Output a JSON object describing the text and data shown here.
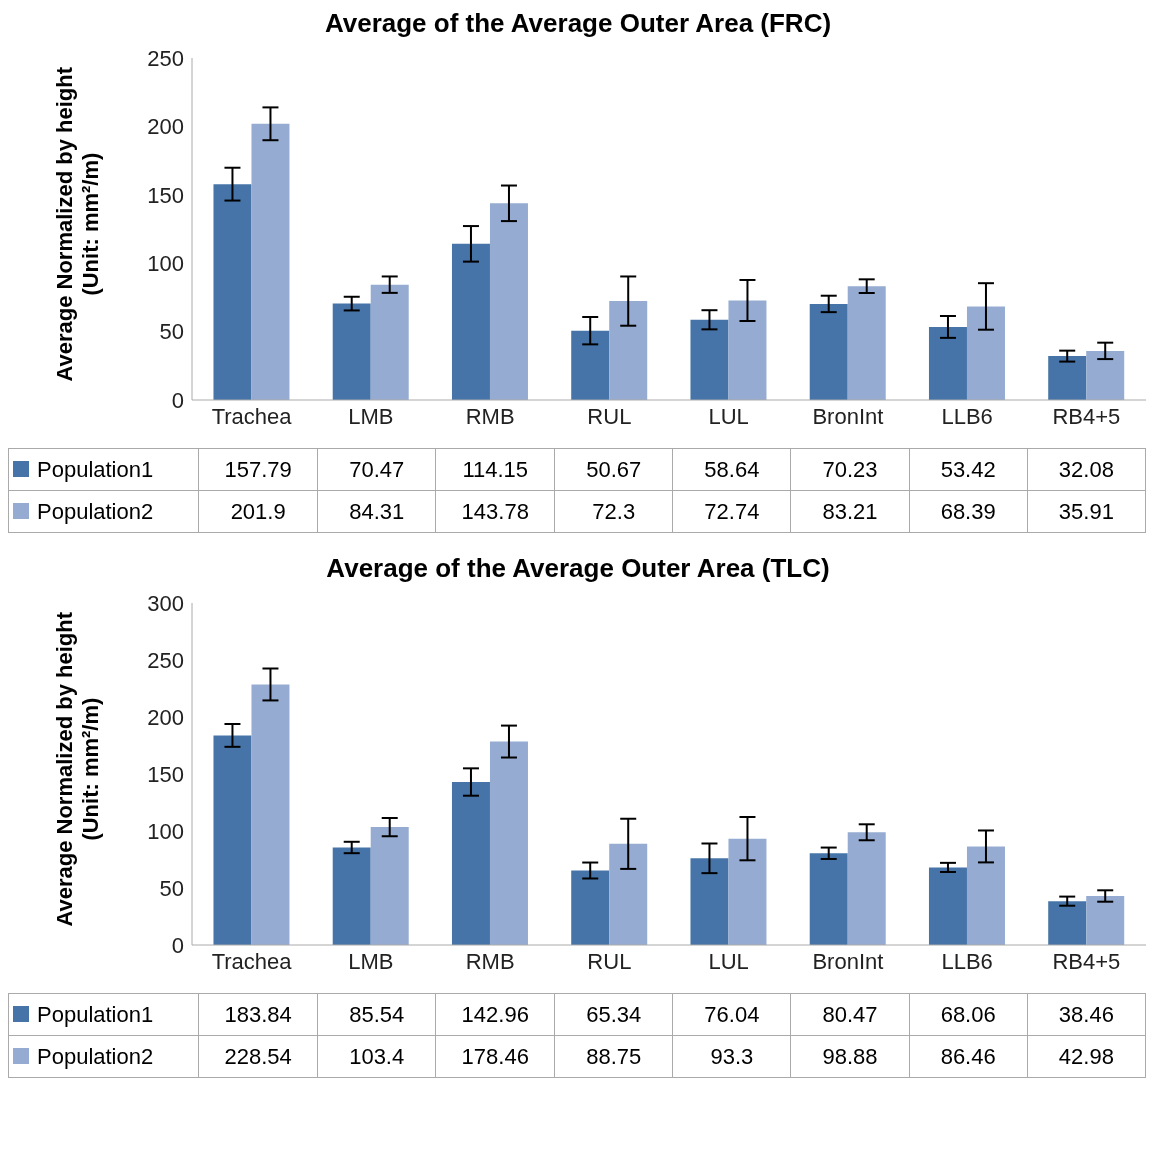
{
  "chart_data": [
    {
      "type": "bar",
      "title": "Average of the Average Outer Area (FRC)",
      "ylabel": "Average Normalized by height\n(Unit: mm²/m)",
      "categories": [
        "Trachea",
        "LMB",
        "RMB",
        "RUL",
        "LUL",
        "BronInt",
        "LLB6",
        "RB4+5"
      ],
      "series": [
        {
          "name": "Population1",
          "color": "#4674a8",
          "values": [
            157.79,
            70.47,
            114.15,
            50.67,
            58.64,
            70.23,
            53.42,
            32.08
          ],
          "errors": [
            12,
            5,
            13,
            10,
            7,
            6,
            8,
            4
          ]
        },
        {
          "name": "Population2",
          "color": "#95abd1",
          "values": [
            201.9,
            84.31,
            143.78,
            72.3,
            72.74,
            83.21,
            68.39,
            35.91
          ],
          "errors": [
            12,
            6,
            13,
            18,
            15,
            5,
            17,
            6
          ]
        }
      ],
      "ylim": [
        0,
        250
      ],
      "yticks": [
        0,
        50,
        100,
        150,
        200,
        250
      ],
      "legend": "bottom",
      "data_labels": true
    },
    {
      "type": "bar",
      "title": "Average of the Average Outer Area (TLC)",
      "ylabel": "Average Normalized by height\n(Unit: mm²/m)",
      "categories": [
        "Trachea",
        "LMB",
        "RMB",
        "RUL",
        "LUL",
        "BronInt",
        "LLB6",
        "RB4+5"
      ],
      "series": [
        {
          "name": "Population1",
          "color": "#4674a8",
          "values": [
            183.84,
            85.54,
            142.96,
            65.34,
            76.04,
            80.47,
            68.06,
            38.46
          ],
          "errors": [
            10,
            5,
            12,
            7,
            13,
            5,
            4,
            4
          ]
        },
        {
          "name": "Population2",
          "color": "#95abd1",
          "values": [
            228.54,
            103.4,
            178.46,
            88.75,
            93.3,
            98.88,
            86.46,
            42.98
          ],
          "errors": [
            14,
            8,
            14,
            22,
            19,
            7,
            14,
            5
          ]
        }
      ],
      "ylim": [
        0,
        300
      ],
      "yticks": [
        0,
        50,
        100,
        150,
        200,
        250,
        300
      ],
      "legend": "bottom",
      "data_labels": true
    }
  ]
}
